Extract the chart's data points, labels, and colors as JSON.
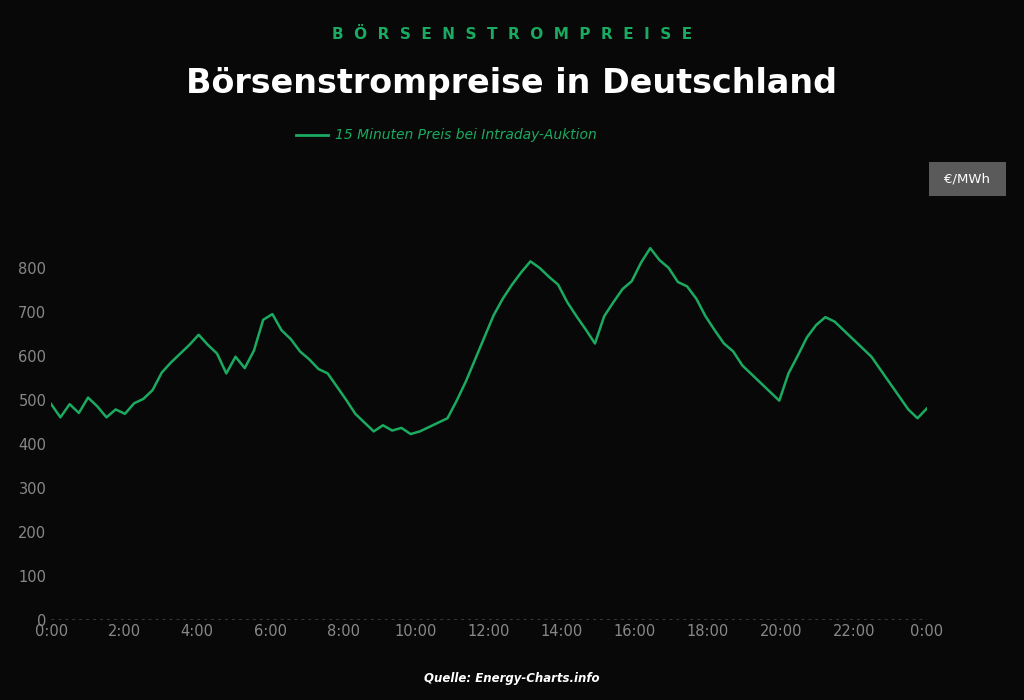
{
  "title_top": "BÖRSENSTROMPREISE",
  "title_main": "Börsenstrompreise in Deutschland",
  "legend_label": "15 Minuten Preis bei Intraday-Auktion",
  "source": "Quelle: Energy-Charts.info",
  "ylabel": "€/MWh",
  "background_color": "#080808",
  "line_color": "#1aaa60",
  "title_top_color": "#1aaa60",
  "title_main_color": "#ffffff",
  "axis_color": "#888888",
  "ylabel_bg": "#5a5a5a",
  "ylim": [
    0,
    900
  ],
  "yticks": [
    0,
    100,
    200,
    300,
    400,
    500,
    600,
    700,
    800
  ],
  "xtick_labels": [
    "0:00",
    "2:00",
    "4:00",
    "6:00",
    "8:00",
    "10:00",
    "12:00",
    "14:00",
    "16:00",
    "18:00",
    "20:00",
    "22:00",
    "0:00"
  ],
  "values": [
    490,
    460,
    490,
    470,
    505,
    485,
    460,
    478,
    468,
    492,
    502,
    522,
    562,
    585,
    605,
    625,
    648,
    625,
    605,
    560,
    598,
    572,
    612,
    682,
    695,
    658,
    638,
    610,
    592,
    570,
    560,
    530,
    500,
    468,
    448,
    428,
    442,
    430,
    436,
    422,
    428,
    438,
    448,
    458,
    498,
    542,
    592,
    642,
    692,
    730,
    762,
    790,
    815,
    800,
    780,
    762,
    722,
    690,
    660,
    628,
    690,
    722,
    752,
    770,
    812,
    845,
    818,
    800,
    768,
    758,
    730,
    690,
    658,
    628,
    610,
    578,
    558,
    538,
    518,
    498,
    560,
    600,
    642,
    670,
    688,
    678,
    658,
    638,
    618,
    598,
    568,
    538,
    508,
    478,
    458,
    480
  ]
}
